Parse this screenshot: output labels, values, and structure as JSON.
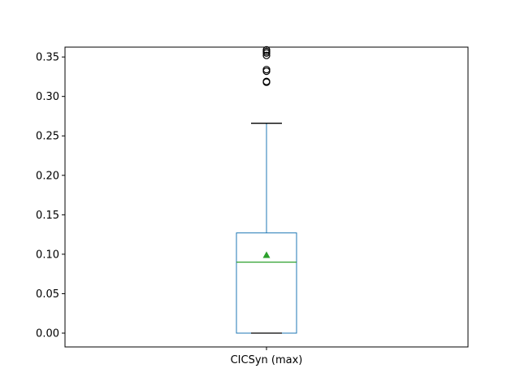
{
  "chart_data": {
    "type": "box",
    "categories": [
      "CICSyn (max)"
    ],
    "box": {
      "whisker_low": 0.0,
      "q1": 0.0,
      "median": 0.09,
      "mean": 0.099,
      "q3": 0.127,
      "whisker_high": 0.266,
      "outliers": [
        0.318,
        0.319,
        0.332,
        0.334,
        0.352,
        0.355,
        0.357,
        0.359
      ]
    },
    "ylim": [
      -0.0175,
      0.3625
    ],
    "yticks": [
      0.0,
      0.05,
      0.1,
      0.15,
      0.2,
      0.25,
      0.3,
      0.35
    ],
    "ytick_labels": [
      "0.00",
      "0.05",
      "0.10",
      "0.15",
      "0.20",
      "0.25",
      "0.30",
      "0.35"
    ],
    "grid": false,
    "colors": {
      "box": "#1f77b4",
      "median": "#2ca02c",
      "mean_marker": "#2ca02c",
      "whisker_cap": "#000000",
      "outlier": "#000000"
    }
  }
}
